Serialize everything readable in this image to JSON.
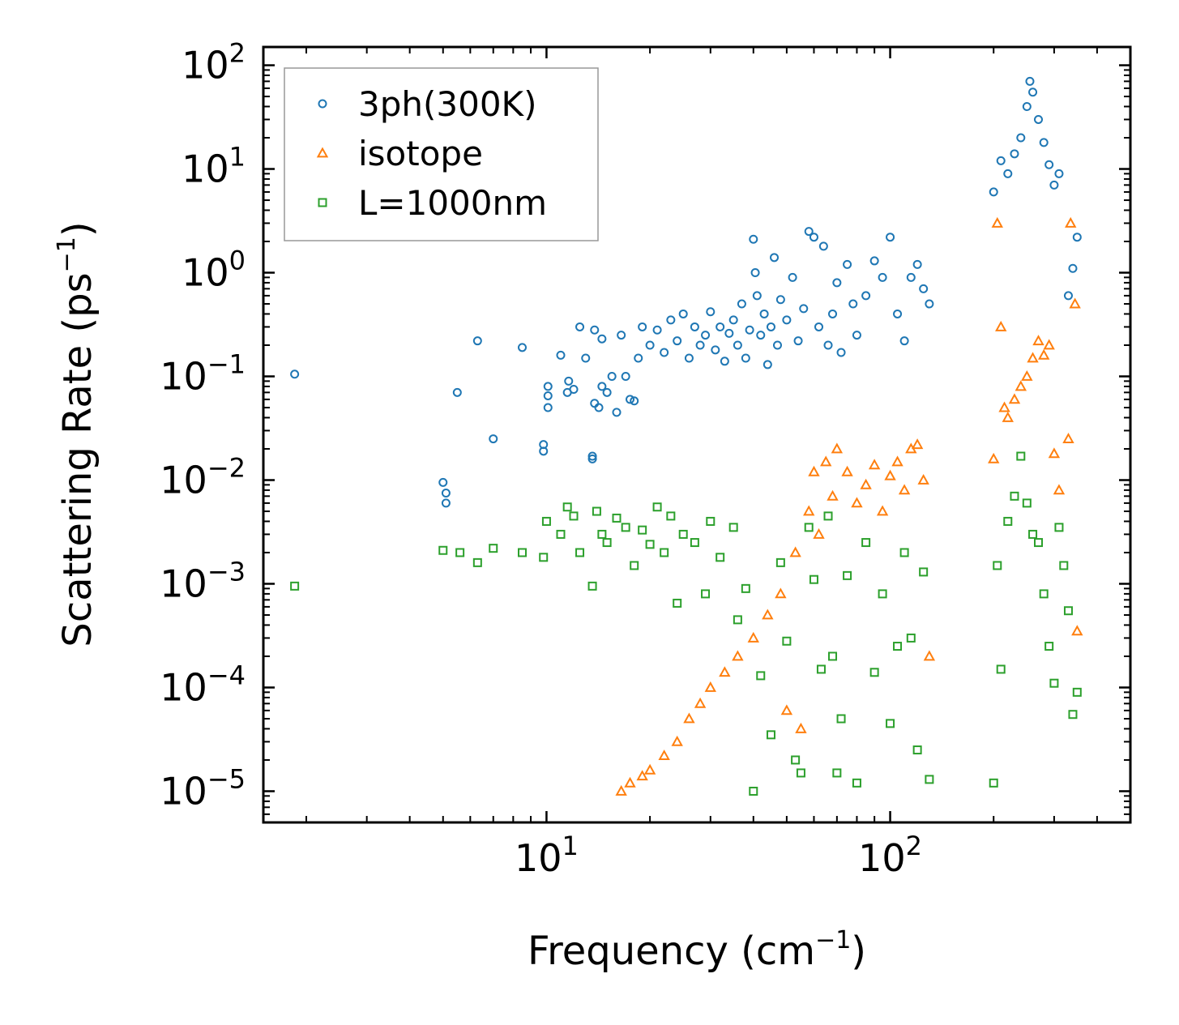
{
  "chart_data": {
    "type": "scatter",
    "title": "",
    "xlabel": "Frequency (cm",
    "xlabel_sup": "−1",
    "xlabel_end": ")",
    "ylabel": "Scattering Rate (ps",
    "ylabel_sup": "−1",
    "ylabel_end": ")",
    "xscale": "log",
    "yscale": "log",
    "xlim": [
      1.5,
      500
    ],
    "ylim": [
      5e-06,
      150
    ],
    "x_ticks": [
      {
        "value": 10,
        "base": "10",
        "exp": "1"
      },
      {
        "value": 100,
        "base": "10",
        "exp": "2"
      }
    ],
    "y_ticks": [
      {
        "value": 100,
        "base": "10",
        "exp": "2"
      },
      {
        "value": 10,
        "base": "10",
        "exp": "1"
      },
      {
        "value": 1,
        "base": "10",
        "exp": "0"
      },
      {
        "value": 0.1,
        "base": "10",
        "exp": "−1"
      },
      {
        "value": 0.01,
        "base": "10",
        "exp": "−2"
      },
      {
        "value": 0.001,
        "base": "10",
        "exp": "−3"
      },
      {
        "value": 0.0001,
        "base": "10",
        "exp": "−4"
      },
      {
        "value": 1e-05,
        "base": "10",
        "exp": "−5"
      }
    ],
    "legend_position": "top-left",
    "series": [
      {
        "name": "3ph(300K)",
        "marker": "circle",
        "color": "#1f77b4",
        "points": [
          [
            1.85,
            0.105
          ],
          [
            5.0,
            0.0095
          ],
          [
            5.1,
            0.0075
          ],
          [
            5.1,
            0.006
          ],
          [
            5.5,
            0.07
          ],
          [
            6.3,
            0.22
          ],
          [
            7.0,
            0.025
          ],
          [
            8.5,
            0.19
          ],
          [
            9.8,
            0.022
          ],
          [
            9.8,
            0.019
          ],
          [
            10.1,
            0.08
          ],
          [
            10.1,
            0.065
          ],
          [
            10.1,
            0.05
          ],
          [
            11.0,
            0.16
          ],
          [
            11.5,
            0.07
          ],
          [
            11.6,
            0.09
          ],
          [
            12.0,
            0.075
          ],
          [
            12.5,
            0.3
          ],
          [
            13.0,
            0.15
          ],
          [
            13.6,
            0.017
          ],
          [
            13.6,
            0.016
          ],
          [
            13.8,
            0.055
          ],
          [
            13.8,
            0.28
          ],
          [
            14.2,
            0.05
          ],
          [
            14.5,
            0.08
          ],
          [
            14.5,
            0.23
          ],
          [
            15.0,
            0.07
          ],
          [
            15.5,
            0.1
          ],
          [
            16.0,
            0.045
          ],
          [
            16.5,
            0.25
          ],
          [
            17.0,
            0.1
          ],
          [
            17.5,
            0.06
          ],
          [
            18.0,
            0.058
          ],
          [
            18.5,
            0.15
          ],
          [
            19.0,
            0.3
          ],
          [
            20.0,
            0.2
          ],
          [
            21.0,
            0.28
          ],
          [
            22.0,
            0.17
          ],
          [
            23.0,
            0.35
          ],
          [
            24.0,
            0.22
          ],
          [
            25.0,
            0.4
          ],
          [
            26.0,
            0.15
          ],
          [
            27.0,
            0.3
          ],
          [
            28.0,
            0.2
          ],
          [
            29.0,
            0.25
          ],
          [
            30.0,
            0.42
          ],
          [
            31.0,
            0.18
          ],
          [
            32.0,
            0.3
          ],
          [
            33.0,
            0.14
          ],
          [
            34.0,
            0.26
          ],
          [
            35.0,
            0.35
          ],
          [
            36.0,
            0.2
          ],
          [
            37.0,
            0.5
          ],
          [
            38.0,
            0.15
          ],
          [
            39.0,
            0.28
          ],
          [
            40.0,
            2.1
          ],
          [
            40.5,
            1.0
          ],
          [
            41.0,
            0.6
          ],
          [
            42.0,
            0.25
          ],
          [
            43.0,
            0.4
          ],
          [
            44.0,
            0.13
          ],
          [
            45.0,
            0.3
          ],
          [
            46.0,
            1.4
          ],
          [
            47.0,
            0.2
          ],
          [
            48.0,
            0.55
          ],
          [
            50.0,
            0.35
          ],
          [
            52.0,
            0.9
          ],
          [
            54.0,
            0.22
          ],
          [
            56.0,
            0.45
          ],
          [
            58.0,
            2.5
          ],
          [
            60.0,
            2.2
          ],
          [
            62.0,
            0.3
          ],
          [
            64.0,
            1.8
          ],
          [
            66.0,
            0.2
          ],
          [
            68.0,
            0.4
          ],
          [
            70.0,
            0.8
          ],
          [
            72.0,
            0.17
          ],
          [
            75.0,
            1.2
          ],
          [
            78.0,
            0.5
          ],
          [
            80.0,
            0.25
          ],
          [
            85.0,
            0.6
          ],
          [
            90.0,
            1.3
          ],
          [
            95.0,
            0.9
          ],
          [
            100.0,
            2.2
          ],
          [
            105.0,
            0.4
          ],
          [
            110.0,
            0.22
          ],
          [
            115.0,
            0.9
          ],
          [
            120.0,
            1.2
          ],
          [
            125.0,
            0.7
          ],
          [
            130.0,
            0.5
          ],
          [
            200.0,
            6.0
          ],
          [
            210.0,
            12.0
          ],
          [
            220.0,
            9.0
          ],
          [
            230.0,
            14.0
          ],
          [
            240.0,
            20.0
          ],
          [
            250.0,
            40.0
          ],
          [
            255.0,
            70.0
          ],
          [
            260.0,
            55.0
          ],
          [
            270.0,
            30.0
          ],
          [
            280.0,
            18.0
          ],
          [
            290.0,
            11.0
          ],
          [
            300.0,
            7.0
          ],
          [
            310.0,
            9.0
          ],
          [
            330.0,
            0.6
          ],
          [
            340.0,
            1.1
          ],
          [
            350.0,
            2.2
          ]
        ]
      },
      {
        "name": "isotope",
        "marker": "triangle",
        "color": "#ff7f0e",
        "points": [
          [
            16.5,
            1e-05
          ],
          [
            17.5,
            1.2e-05
          ],
          [
            19.0,
            1.4e-05
          ],
          [
            20.0,
            1.6e-05
          ],
          [
            22.0,
            2.2e-05
          ],
          [
            24.0,
            3e-05
          ],
          [
            26.0,
            5e-05
          ],
          [
            28.0,
            7e-05
          ],
          [
            30.0,
            0.0001
          ],
          [
            33.0,
            0.00014
          ],
          [
            36.0,
            0.0002
          ],
          [
            40.0,
            0.0003
          ],
          [
            44.0,
            0.0005
          ],
          [
            48.0,
            0.0008
          ],
          [
            50.0,
            6e-05
          ],
          [
            53.0,
            0.002
          ],
          [
            55.0,
            4e-05
          ],
          [
            58.0,
            0.005
          ],
          [
            60.0,
            0.012
          ],
          [
            62.0,
            0.003
          ],
          [
            65.0,
            0.015
          ],
          [
            68.0,
            0.007
          ],
          [
            70.0,
            0.02
          ],
          [
            75.0,
            0.012
          ],
          [
            80.0,
            0.006
          ],
          [
            85.0,
            0.009
          ],
          [
            90.0,
            0.014
          ],
          [
            95.0,
            0.005
          ],
          [
            100.0,
            0.011
          ],
          [
            105.0,
            0.015
          ],
          [
            110.0,
            0.008
          ],
          [
            115.0,
            0.02
          ],
          [
            120.0,
            0.022
          ],
          [
            125.0,
            0.01
          ],
          [
            130.0,
            0.0002
          ],
          [
            200.0,
            0.016
          ],
          [
            205.0,
            3.0
          ],
          [
            210.0,
            0.3
          ],
          [
            215.0,
            0.05
          ],
          [
            220.0,
            0.04
          ],
          [
            230.0,
            0.06
          ],
          [
            240.0,
            0.08
          ],
          [
            250.0,
            0.1
          ],
          [
            260.0,
            0.15
          ],
          [
            270.0,
            0.22
          ],
          [
            280.0,
            0.16
          ],
          [
            290.0,
            0.2
          ],
          [
            300.0,
            0.018
          ],
          [
            310.0,
            0.008
          ],
          [
            330.0,
            0.025
          ],
          [
            335.0,
            3.0
          ],
          [
            345.0,
            0.5
          ],
          [
            350.0,
            0.00035
          ]
        ]
      },
      {
        "name": "L=1000nm",
        "marker": "square",
        "color": "#2ca02c",
        "points": [
          [
            1.85,
            0.00095
          ],
          [
            5.0,
            0.0021
          ],
          [
            5.6,
            0.002
          ],
          [
            6.3,
            0.0016
          ],
          [
            7.0,
            0.0022
          ],
          [
            8.5,
            0.002
          ],
          [
            9.8,
            0.0018
          ],
          [
            10.0,
            0.004
          ],
          [
            11.0,
            0.003
          ],
          [
            11.5,
            0.0055
          ],
          [
            12.0,
            0.0045
          ],
          [
            12.5,
            0.002
          ],
          [
            13.6,
            0.00095
          ],
          [
            14.0,
            0.005
          ],
          [
            14.5,
            0.003
          ],
          [
            15.0,
            0.0025
          ],
          [
            16.0,
            0.0043
          ],
          [
            17.0,
            0.0035
          ],
          [
            18.0,
            0.0015
          ],
          [
            19.0,
            0.0033
          ],
          [
            20.0,
            0.0024
          ],
          [
            21.0,
            0.0055
          ],
          [
            22.0,
            0.002
          ],
          [
            23.0,
            0.0045
          ],
          [
            24.0,
            0.00065
          ],
          [
            25.0,
            0.003
          ],
          [
            27.0,
            0.0025
          ],
          [
            29.0,
            0.0008
          ],
          [
            30.0,
            0.004
          ],
          [
            32.0,
            0.0018
          ],
          [
            35.0,
            0.0035
          ],
          [
            36.0,
            0.00045
          ],
          [
            38.0,
            0.0009
          ],
          [
            40.0,
            1e-05
          ],
          [
            42.0,
            0.00013
          ],
          [
            45.0,
            3.5e-05
          ],
          [
            48.0,
            0.0016
          ],
          [
            50.0,
            0.00028
          ],
          [
            53.0,
            2e-05
          ],
          [
            55.0,
            1.5e-05
          ],
          [
            58.0,
            0.0035
          ],
          [
            60.0,
            0.0011
          ],
          [
            63.0,
            0.00015
          ],
          [
            66.0,
            0.0045
          ],
          [
            68.0,
            0.0002
          ],
          [
            70.0,
            1.5e-05
          ],
          [
            72.0,
            5e-05
          ],
          [
            75.0,
            0.0012
          ],
          [
            80.0,
            1.2e-05
          ],
          [
            85.0,
            0.0025
          ],
          [
            90.0,
            0.00014
          ],
          [
            95.0,
            0.0008
          ],
          [
            100.0,
            4.5e-05
          ],
          [
            105.0,
            0.00025
          ],
          [
            110.0,
            0.002
          ],
          [
            115.0,
            0.0003
          ],
          [
            120.0,
            2.5e-05
          ],
          [
            125.0,
            0.0013
          ],
          [
            130.0,
            1.3e-05
          ],
          [
            200.0,
            1.2e-05
          ],
          [
            205.0,
            0.0015
          ],
          [
            210.0,
            0.00015
          ],
          [
            220.0,
            0.004
          ],
          [
            230.0,
            0.007
          ],
          [
            240.0,
            0.017
          ],
          [
            250.0,
            0.006
          ],
          [
            260.0,
            0.003
          ],
          [
            270.0,
            0.0025
          ],
          [
            280.0,
            0.0008
          ],
          [
            290.0,
            0.00025
          ],
          [
            300.0,
            0.00011
          ],
          [
            310.0,
            0.0035
          ],
          [
            320.0,
            0.0015
          ],
          [
            330.0,
            0.00055
          ],
          [
            340.0,
            5.5e-05
          ],
          [
            350.0,
            9e-05
          ]
        ]
      }
    ]
  }
}
